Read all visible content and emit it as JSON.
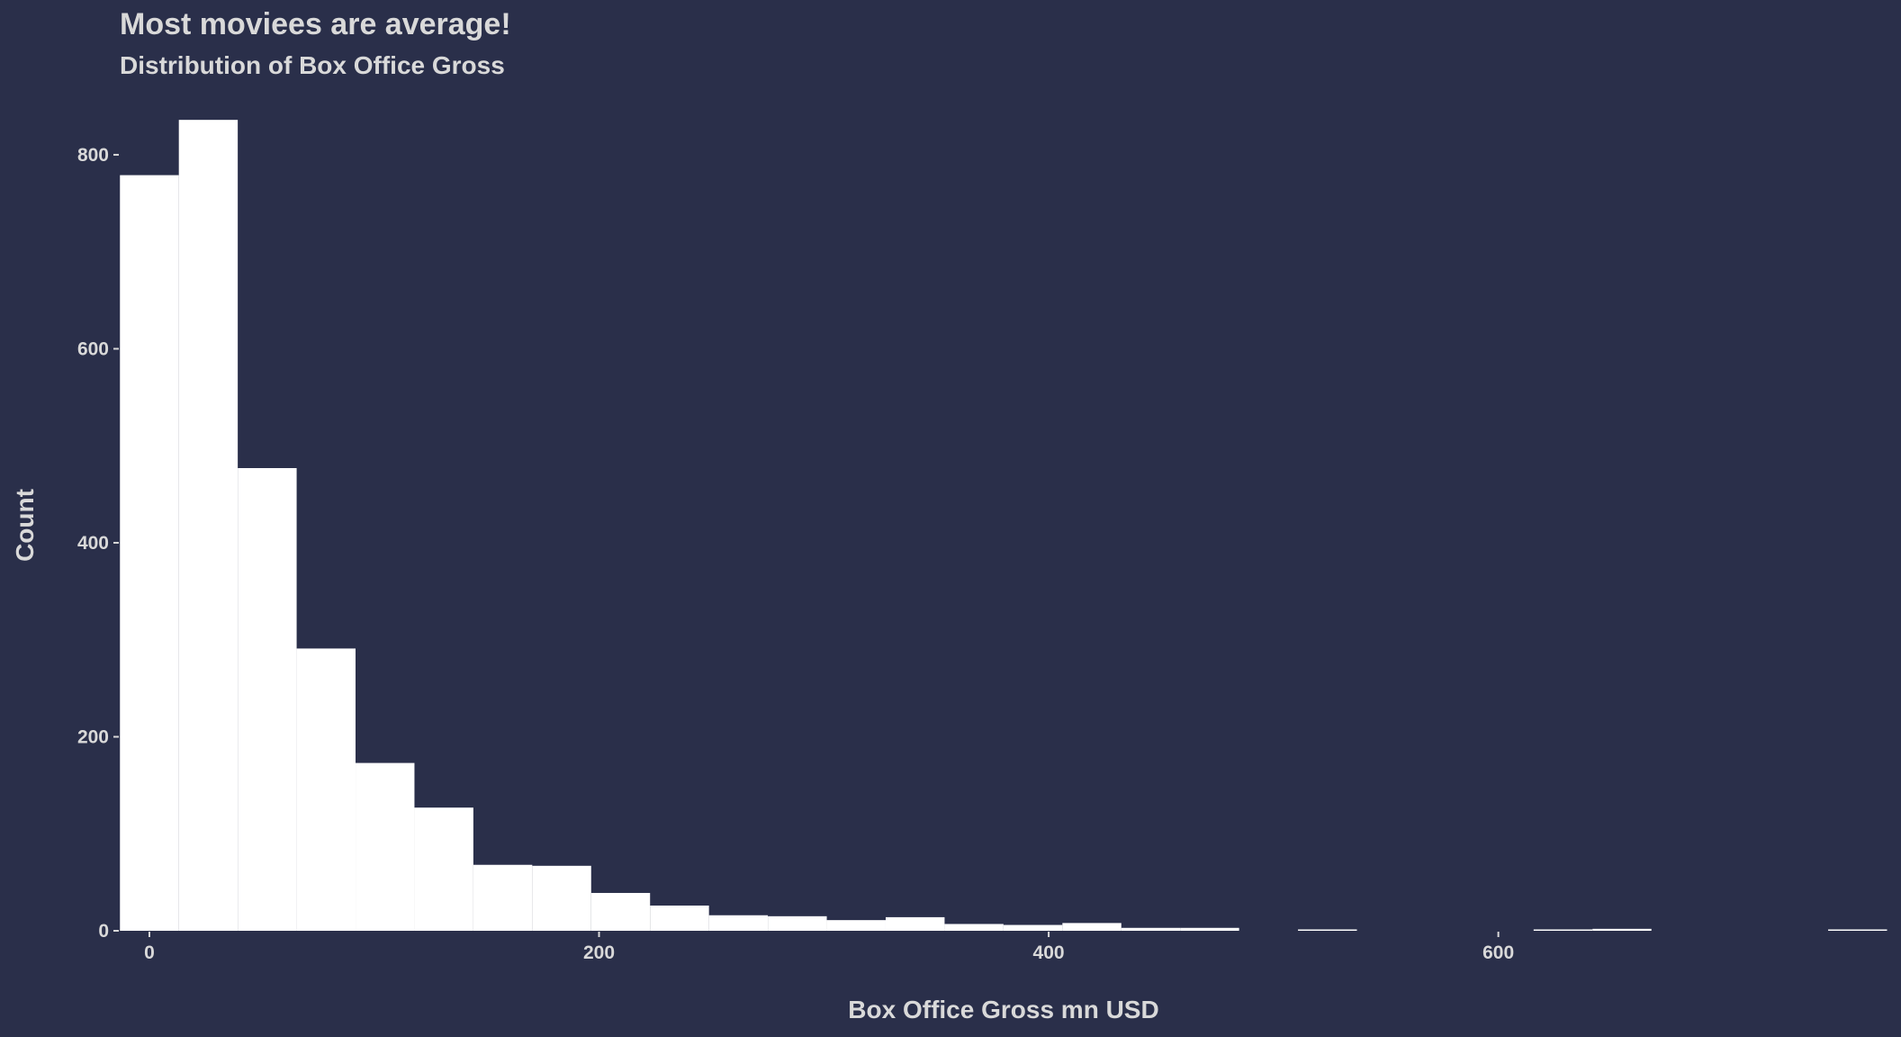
{
  "chart_data": {
    "type": "bar",
    "title": "Most moviees are average!",
    "subtitle": "Distribution of Box Office Gross",
    "xlabel": "Box Office Gross  mn USD",
    "ylabel": "Count",
    "xlim": [
      -13.2,
      773.1
    ],
    "ylim": [
      0,
      838
    ],
    "x_ticks": [
      0,
      200,
      400,
      600
    ],
    "y_ticks": [
      0,
      200,
      400,
      600,
      800
    ],
    "grid": false,
    "bin_width": 26.2,
    "bins": [
      {
        "x0": -13.1,
        "x1": 13.1,
        "count": 779
      },
      {
        "x0": 13.1,
        "x1": 39.3,
        "count": 836
      },
      {
        "x0": 39.3,
        "x1": 65.5,
        "count": 477
      },
      {
        "x0": 65.5,
        "x1": 91.7,
        "count": 291
      },
      {
        "x0": 91.7,
        "x1": 117.9,
        "count": 173
      },
      {
        "x0": 117.9,
        "x1": 144.1,
        "count": 127
      },
      {
        "x0": 144.1,
        "x1": 170.3,
        "count": 68
      },
      {
        "x0": 170.3,
        "x1": 196.5,
        "count": 67
      },
      {
        "x0": 196.5,
        "x1": 222.7,
        "count": 39
      },
      {
        "x0": 222.7,
        "x1": 248.9,
        "count": 26
      },
      {
        "x0": 248.9,
        "x1": 275.1,
        "count": 16
      },
      {
        "x0": 275.1,
        "x1": 301.3,
        "count": 15
      },
      {
        "x0": 301.3,
        "x1": 327.5,
        "count": 11
      },
      {
        "x0": 327.5,
        "x1": 353.7,
        "count": 14
      },
      {
        "x0": 353.7,
        "x1": 379.9,
        "count": 7
      },
      {
        "x0": 379.9,
        "x1": 406.1,
        "count": 6
      },
      {
        "x0": 406.1,
        "x1": 432.3,
        "count": 8
      },
      {
        "x0": 432.3,
        "x1": 458.5,
        "count": 3
      },
      {
        "x0": 458.5,
        "x1": 484.7,
        "count": 3
      },
      {
        "x0": 484.7,
        "x1": 510.9,
        "count": 0
      },
      {
        "x0": 510.9,
        "x1": 537.1,
        "count": 1
      },
      {
        "x0": 537.1,
        "x1": 563.3,
        "count": 0
      },
      {
        "x0": 563.3,
        "x1": 589.5,
        "count": 0
      },
      {
        "x0": 589.5,
        "x1": 615.7,
        "count": 0
      },
      {
        "x0": 615.7,
        "x1": 641.9,
        "count": 1
      },
      {
        "x0": 641.9,
        "x1": 668.1,
        "count": 2
      },
      {
        "x0": 668.1,
        "x1": 694.3,
        "count": 0
      },
      {
        "x0": 694.3,
        "x1": 720.5,
        "count": 0
      },
      {
        "x0": 720.5,
        "x1": 746.7,
        "count": 0
      },
      {
        "x0": 746.7,
        "x1": 772.9,
        "count": 1
      }
    ],
    "colors": {
      "background": "#2a2f4a",
      "bar": "#ffffff",
      "text": "#d9d9d9"
    }
  }
}
